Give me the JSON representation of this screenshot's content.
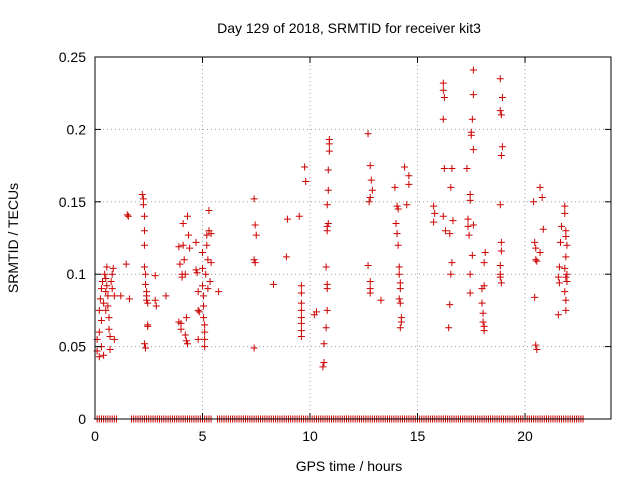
{
  "chart_data": {
    "type": "scatter",
    "title": "Day 129 of 2018, SRMTID for receiver kit3",
    "xlabel": "GPS time / hours",
    "ylabel": "SRMTID / TECUs",
    "xlim": [
      0,
      24
    ],
    "ylim": [
      0,
      0.25
    ],
    "xticks": [
      0,
      5,
      10,
      15,
      20
    ],
    "xtick_labels": [
      "0",
      "5",
      "10",
      "15",
      "20"
    ],
    "yticks": [
      0,
      0.05,
      0.1,
      0.15,
      0.2,
      0.25
    ],
    "ytick_labels": [
      "0",
      "0.05",
      "0.1",
      "0.15",
      "0.2",
      "0.25"
    ],
    "grid": true,
    "marker": "+",
    "color": "#cc0000",
    "series": [
      {
        "name": "SRMTID",
        "points": [
          [
            0.1,
            0.055
          ],
          [
            0.1,
            0.047
          ],
          [
            0.2,
            0.043
          ],
          [
            0.2,
            0.06
          ],
          [
            0.2,
            0.075
          ],
          [
            0.25,
            0.083
          ],
          [
            0.3,
            0.09
          ],
          [
            0.3,
            0.068
          ],
          [
            0.3,
            0.05
          ],
          [
            0.35,
            0.095
          ],
          [
            0.4,
            0.044
          ],
          [
            0.4,
            0.08
          ],
          [
            0.45,
            0.1
          ],
          [
            0.5,
            0.097
          ],
          [
            0.5,
            0.088
          ],
          [
            0.5,
            0.075
          ],
          [
            0.55,
            0.105
          ],
          [
            0.55,
            0.092
          ],
          [
            0.6,
            0.085
          ],
          [
            0.6,
            0.078
          ],
          [
            0.65,
            0.07
          ],
          [
            0.65,
            0.062
          ],
          [
            0.7,
            0.057
          ],
          [
            0.7,
            0.048
          ],
          [
            0.75,
            0.095
          ],
          [
            0.8,
            0.09
          ],
          [
            0.8,
            0.1
          ],
          [
            0.85,
            0.104
          ],
          [
            0.9,
            0.085
          ],
          [
            0.9,
            0.055
          ],
          [
            1.2,
            0.085
          ],
          [
            1.45,
            0.107
          ],
          [
            1.5,
            0.141
          ],
          [
            1.55,
            0.14
          ],
          [
            1.6,
            0.083
          ],
          [
            2.2,
            0.155
          ],
          [
            2.25,
            0.152
          ],
          [
            2.25,
            0.148
          ],
          [
            2.3,
            0.14
          ],
          [
            2.3,
            0.13
          ],
          [
            2.3,
            0.12
          ],
          [
            2.3,
            0.105
          ],
          [
            2.35,
            0.1
          ],
          [
            2.35,
            0.093
          ],
          [
            2.4,
            0.088
          ],
          [
            2.4,
            0.085
          ],
          [
            2.4,
            0.082
          ],
          [
            2.45,
            0.08
          ],
          [
            2.45,
            0.065
          ],
          [
            2.45,
            0.064
          ],
          [
            2.3,
            0.052
          ],
          [
            2.35,
            0.049
          ],
          [
            2.8,
            0.099
          ],
          [
            2.8,
            0.082
          ],
          [
            2.85,
            0.078
          ],
          [
            3.3,
            0.085
          ],
          [
            3.9,
            0.119
          ],
          [
            3.95,
            0.107
          ],
          [
            3.9,
            0.067
          ],
          [
            4.0,
            0.066
          ],
          [
            4.0,
            0.062
          ],
          [
            4.05,
            0.1
          ],
          [
            4.05,
            0.098
          ],
          [
            4.1,
            0.135
          ],
          [
            4.1,
            0.12
          ],
          [
            4.15,
            0.11
          ],
          [
            4.2,
            0.1
          ],
          [
            4.2,
            0.058
          ],
          [
            4.25,
            0.054
          ],
          [
            4.3,
            0.052
          ],
          [
            4.25,
            0.07
          ],
          [
            4.3,
            0.14
          ],
          [
            4.35,
            0.127
          ],
          [
            4.4,
            0.118
          ],
          [
            4.7,
            0.122
          ],
          [
            4.7,
            0.103
          ],
          [
            4.75,
            0.101
          ],
          [
            4.8,
            0.088
          ],
          [
            4.8,
            0.075
          ],
          [
            4.8,
            0.055
          ],
          [
            4.85,
            0.074
          ],
          [
            5.0,
            0.115
          ],
          [
            5.0,
            0.104
          ],
          [
            5.0,
            0.092
          ],
          [
            5.05,
            0.085
          ],
          [
            5.05,
            0.078
          ],
          [
            5.05,
            0.07
          ],
          [
            5.1,
            0.065
          ],
          [
            5.1,
            0.06
          ],
          [
            5.1,
            0.055
          ],
          [
            5.1,
            0.05
          ],
          [
            5.15,
            0.1
          ],
          [
            5.2,
            0.127
          ],
          [
            5.2,
            0.12
          ],
          [
            5.25,
            0.11
          ],
          [
            5.25,
            0.09
          ],
          [
            5.3,
            0.144
          ],
          [
            5.3,
            0.13
          ],
          [
            5.35,
            0.095
          ],
          [
            5.4,
            0.128
          ],
          [
            5.4,
            0.108
          ],
          [
            5.75,
            0.088
          ],
          [
            7.4,
            0.152
          ],
          [
            7.45,
            0.134
          ],
          [
            7.5,
            0.127
          ],
          [
            7.4,
            0.11
          ],
          [
            7.45,
            0.108
          ],
          [
            7.4,
            0.049
          ],
          [
            8.3,
            0.093
          ],
          [
            8.9,
            0.112
          ],
          [
            8.95,
            0.138
          ],
          [
            9.5,
            0.14
          ],
          [
            9.6,
            0.092
          ],
          [
            9.6,
            0.087
          ],
          [
            9.6,
            0.08
          ],
          [
            9.6,
            0.075
          ],
          [
            9.6,
            0.07
          ],
          [
            9.6,
            0.066
          ],
          [
            9.6,
            0.061
          ],
          [
            9.6,
            0.057
          ],
          [
            9.75,
            0.174
          ],
          [
            9.8,
            0.164
          ],
          [
            10.2,
            0.072
          ],
          [
            10.3,
            0.074
          ],
          [
            10.6,
            0.036
          ],
          [
            10.65,
            0.039
          ],
          [
            10.65,
            0.052
          ],
          [
            10.75,
            0.063
          ],
          [
            10.8,
            0.09
          ],
          [
            10.8,
            0.093
          ],
          [
            10.75,
            0.105
          ],
          [
            10.8,
            0.13
          ],
          [
            10.8,
            0.133
          ],
          [
            10.85,
            0.135
          ],
          [
            10.8,
            0.148
          ],
          [
            10.85,
            0.158
          ],
          [
            10.85,
            0.172
          ],
          [
            10.9,
            0.185
          ],
          [
            10.9,
            0.19
          ],
          [
            10.9,
            0.193
          ],
          [
            10.8,
            0.075
          ],
          [
            12.7,
            0.197
          ],
          [
            12.8,
            0.175
          ],
          [
            12.85,
            0.165
          ],
          [
            12.9,
            0.158
          ],
          [
            12.8,
            0.153
          ],
          [
            12.75,
            0.15
          ],
          [
            12.7,
            0.106
          ],
          [
            12.8,
            0.095
          ],
          [
            12.8,
            0.09
          ],
          [
            12.8,
            0.087
          ],
          [
            13.3,
            0.082
          ],
          [
            13.95,
            0.16
          ],
          [
            14.05,
            0.147
          ],
          [
            14.1,
            0.145
          ],
          [
            14.0,
            0.135
          ],
          [
            14.05,
            0.128
          ],
          [
            14.1,
            0.12
          ],
          [
            14.15,
            0.105
          ],
          [
            14.15,
            0.1
          ],
          [
            14.2,
            0.094
          ],
          [
            14.2,
            0.09
          ],
          [
            14.15,
            0.083
          ],
          [
            14.2,
            0.08
          ],
          [
            14.25,
            0.07
          ],
          [
            14.25,
            0.067
          ],
          [
            14.2,
            0.063
          ],
          [
            14.4,
            0.174
          ],
          [
            14.5,
            0.148
          ],
          [
            14.6,
            0.168
          ],
          [
            14.6,
            0.162
          ],
          [
            15.75,
            0.147
          ],
          [
            15.8,
            0.142
          ],
          [
            15.75,
            0.136
          ],
          [
            16.2,
            0.232
          ],
          [
            16.2,
            0.227
          ],
          [
            16.25,
            0.222
          ],
          [
            16.2,
            0.207
          ],
          [
            16.25,
            0.173
          ],
          [
            16.2,
            0.14
          ],
          [
            16.3,
            0.13
          ],
          [
            16.45,
            0.063
          ],
          [
            16.5,
            0.079
          ],
          [
            16.55,
            0.1
          ],
          [
            16.5,
            0.128
          ],
          [
            16.55,
            0.16
          ],
          [
            16.6,
            0.173
          ],
          [
            16.6,
            0.108
          ],
          [
            16.65,
            0.137
          ],
          [
            17.3,
            0.173
          ],
          [
            17.35,
            0.138
          ],
          [
            17.35,
            0.133
          ],
          [
            17.4,
            0.127
          ],
          [
            17.45,
            0.151
          ],
          [
            17.45,
            0.155
          ],
          [
            17.5,
            0.196
          ],
          [
            17.5,
            0.198
          ],
          [
            17.55,
            0.207
          ],
          [
            17.6,
            0.241
          ],
          [
            17.6,
            0.224
          ],
          [
            17.6,
            0.186
          ],
          [
            17.45,
            0.1
          ],
          [
            17.45,
            0.087
          ],
          [
            17.55,
            0.113
          ],
          [
            17.6,
            0.134
          ],
          [
            18.0,
            0.09
          ],
          [
            18.0,
            0.08
          ],
          [
            18.05,
            0.073
          ],
          [
            18.05,
            0.067
          ],
          [
            18.1,
            0.064
          ],
          [
            18.1,
            0.061
          ],
          [
            18.1,
            0.092
          ],
          [
            18.1,
            0.108
          ],
          [
            18.15,
            0.115
          ],
          [
            18.85,
            0.235
          ],
          [
            18.85,
            0.213
          ],
          [
            18.9,
            0.21
          ],
          [
            18.95,
            0.222
          ],
          [
            18.95,
            0.188
          ],
          [
            18.9,
            0.182
          ],
          [
            18.85,
            0.148
          ],
          [
            18.9,
            0.122
          ],
          [
            18.9,
            0.116
          ],
          [
            18.85,
            0.106
          ],
          [
            18.85,
            0.1
          ],
          [
            18.85,
            0.098
          ],
          [
            18.9,
            0.094
          ],
          [
            20.4,
            0.15
          ],
          [
            20.45,
            0.122
          ],
          [
            20.5,
            0.118
          ],
          [
            20.5,
            0.11
          ],
          [
            20.55,
            0.109
          ],
          [
            20.45,
            0.084
          ],
          [
            20.5,
            0.051
          ],
          [
            20.55,
            0.048
          ],
          [
            20.7,
            0.16
          ],
          [
            20.8,
            0.153
          ],
          [
            20.85,
            0.131
          ],
          [
            20.7,
            0.115
          ],
          [
            21.55,
            0.072
          ],
          [
            21.55,
            0.098
          ],
          [
            21.6,
            0.094
          ],
          [
            21.6,
            0.105
          ],
          [
            21.65,
            0.122
          ],
          [
            21.7,
            0.133
          ],
          [
            21.85,
            0.147
          ],
          [
            21.85,
            0.142
          ],
          [
            21.9,
            0.13
          ],
          [
            21.9,
            0.126
          ],
          [
            21.95,
            0.12
          ],
          [
            21.9,
            0.112
          ],
          [
            21.85,
            0.104
          ],
          [
            21.9,
            0.098
          ],
          [
            21.95,
            0.095
          ],
          [
            21.85,
            0.088
          ],
          [
            21.9,
            0.082
          ],
          [
            21.9,
            0.075
          ],
          [
            21.95,
            0.1
          ]
        ],
        "zero_baseline": {
          "y": 0,
          "x_start": 0.1,
          "x_end": 22.7,
          "x_step": 0.1,
          "gaps": [
            [
              1.0,
              1.7
            ],
            [
              5.4,
              5.6
            ]
          ]
        }
      }
    ]
  }
}
